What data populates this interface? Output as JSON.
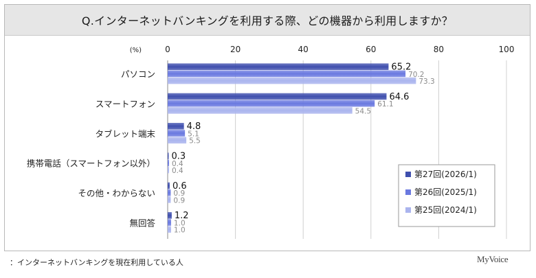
{
  "title": "Q.インターネットバンキングを利用する際、どの機器から利用しますか？",
  "footnote": "：インターネットバンキングを現在利用している人",
  "logo_text": "MyVoice",
  "chart_data": {
    "type": "bar",
    "orientation": "horizontal",
    "unit_label": "(%)",
    "xlim": [
      0,
      100
    ],
    "xticks": [
      "0",
      "20",
      "40",
      "60",
      "80",
      "100"
    ],
    "xtick_values": [
      0,
      20,
      40,
      60,
      80,
      100
    ],
    "grid": true,
    "legend_position": "bottom-right",
    "categories": [
      "パソコン",
      "スマートフォン",
      "タブレット端末",
      "携帯電話（スマートフォン以外）",
      "その他・わからない",
      "無回答"
    ],
    "series": [
      {
        "name": "第27回(2026/1)",
        "values": [
          65.2,
          64.6,
          4.8,
          0.3,
          0.6,
          1.2
        ],
        "labels": [
          "65.2",
          "64.6",
          "4.8",
          "0.3",
          "0.6",
          "1.2"
        ],
        "color": "#3f4fae",
        "label_color": "#111111"
      },
      {
        "name": "第26回(2025/1)",
        "values": [
          70.2,
          61.1,
          5.1,
          0.4,
          0.9,
          1.0
        ],
        "labels": [
          "70.2",
          "61.1",
          "5.1",
          "0.4",
          "0.9",
          "1.0"
        ],
        "color": "#6a79e0",
        "label_color": "#8a8a8a"
      },
      {
        "name": "第25回(2024/1)",
        "values": [
          73.3,
          54.5,
          5.5,
          0.4,
          0.9,
          1.0
        ],
        "labels": [
          "73.3",
          "54.5",
          "5.5",
          "0.4",
          "0.9",
          "1.0"
        ],
        "color": "#aab4ee",
        "label_color": "#8a8a8a"
      }
    ]
  }
}
